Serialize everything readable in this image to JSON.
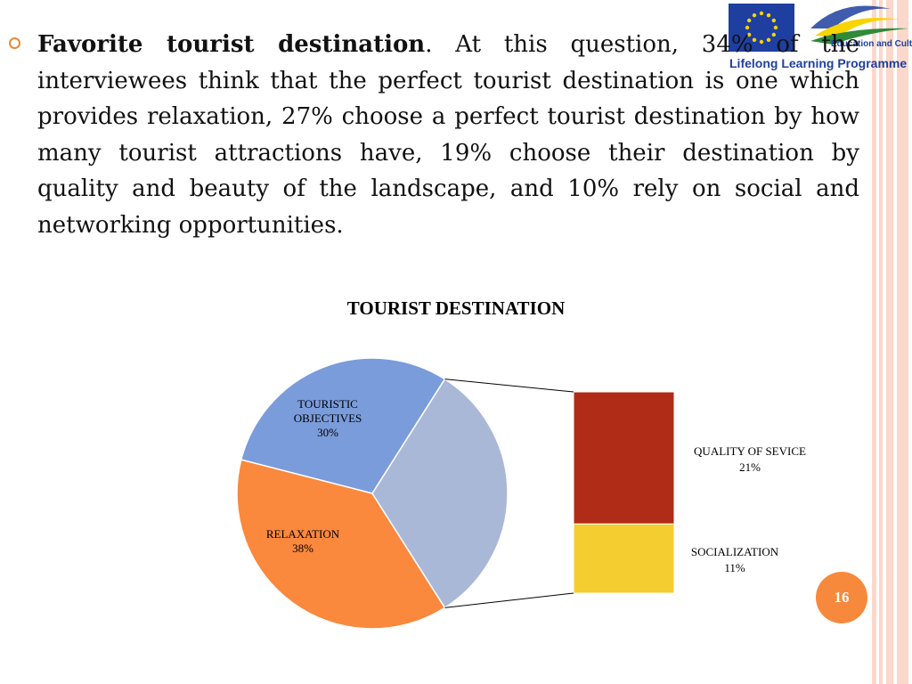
{
  "slide": {
    "heading_bold": "Favorite tourist destination",
    "body_text": ". At this question, 34% of the interviewees think that the perfect tourist destination is one which provides relaxation, 27% choose a perfect tourist destination by how many tourist attractions have, 19% choose their destination by quality and beauty of the landscape, and 10% rely on social and networking opportunities.",
    "page_number": "16"
  },
  "logo": {
    "line1": "Education and Culture DG",
    "line2": "Lifelong Learning Programme",
    "colors": {
      "eu_blue": "#1f3fa0",
      "eu_star": "#f8d400",
      "text_blue": "#1f3fa0"
    }
  },
  "chart_data": {
    "type": "pie",
    "variant": "bar-of-pie",
    "title": "TOURIST DESTINATION",
    "slices": [
      {
        "label": "TOURISTIC OBJECTIVES",
        "value": 30,
        "value_label": "30%",
        "color": "#7a9cdb"
      },
      {
        "label": "RELAXATION",
        "value": 38,
        "value_label": "38%",
        "color": "#fa883d"
      },
      {
        "label": "",
        "value": 32,
        "value_label": "",
        "color": "#aab8d8"
      }
    ],
    "breakout": [
      {
        "label": "QUALITY OF SEVICE",
        "value": 21,
        "value_label": "21%",
        "color": "#b02c17"
      },
      {
        "label": "SOCIALIZATION",
        "value": 11,
        "value_label": "11%",
        "color": "#f4cd30"
      }
    ]
  }
}
